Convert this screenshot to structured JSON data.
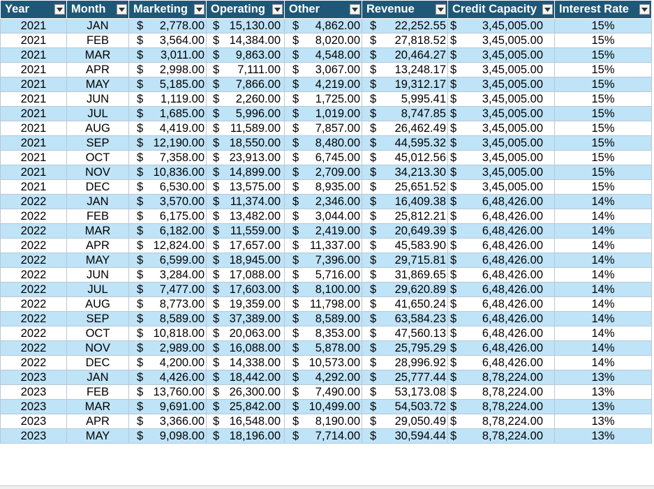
{
  "headers": [
    {
      "key": "year",
      "label": "Year"
    },
    {
      "key": "month",
      "label": "Month"
    },
    {
      "key": "marketing",
      "label": "Marketing"
    },
    {
      "key": "operating",
      "label": "Operating"
    },
    {
      "key": "other",
      "label": "Other"
    },
    {
      "key": "revenue",
      "label": "Revenue"
    },
    {
      "key": "credit",
      "label": "Credit Capacity"
    },
    {
      "key": "interest",
      "label": "Interest Rate"
    }
  ],
  "currency_symbol": "$",
  "rows": [
    {
      "year": "2021",
      "month": "JAN",
      "marketing": "2,778.00",
      "operating": "15,130.00",
      "other": "4,862.00",
      "revenue": "22,252.55",
      "credit": "3,45,005.00",
      "interest": "15%"
    },
    {
      "year": "2021",
      "month": "FEB",
      "marketing": "3,564.00",
      "operating": "14,384.00",
      "other": "8,020.00",
      "revenue": "27,818.52",
      "credit": "3,45,005.00",
      "interest": "15%"
    },
    {
      "year": "2021",
      "month": "MAR",
      "marketing": "3,011.00",
      "operating": "9,863.00",
      "other": "4,548.00",
      "revenue": "20,464.27",
      "credit": "3,45,005.00",
      "interest": "15%"
    },
    {
      "year": "2021",
      "month": "APR",
      "marketing": "2,998.00",
      "operating": "7,111.00",
      "other": "3,067.00",
      "revenue": "13,248.17",
      "credit": "3,45,005.00",
      "interest": "15%"
    },
    {
      "year": "2021",
      "month": "MAY",
      "marketing": "5,185.00",
      "operating": "7,866.00",
      "other": "4,219.00",
      "revenue": "19,312.17",
      "credit": "3,45,005.00",
      "interest": "15%"
    },
    {
      "year": "2021",
      "month": "JUN",
      "marketing": "1,119.00",
      "operating": "2,260.00",
      "other": "1,725.00",
      "revenue": "5,995.41",
      "credit": "3,45,005.00",
      "interest": "15%"
    },
    {
      "year": "2021",
      "month": "JUL",
      "marketing": "1,685.00",
      "operating": "5,996.00",
      "other": "1,019.00",
      "revenue": "8,747.85",
      "credit": "3,45,005.00",
      "interest": "15%"
    },
    {
      "year": "2021",
      "month": "AUG",
      "marketing": "4,419.00",
      "operating": "11,589.00",
      "other": "7,857.00",
      "revenue": "26,462.49",
      "credit": "3,45,005.00",
      "interest": "15%"
    },
    {
      "year": "2021",
      "month": "SEP",
      "marketing": "12,190.00",
      "operating": "18,550.00",
      "other": "8,480.00",
      "revenue": "44,595.32",
      "credit": "3,45,005.00",
      "interest": "15%"
    },
    {
      "year": "2021",
      "month": "OCT",
      "marketing": "7,358.00",
      "operating": "23,913.00",
      "other": "6,745.00",
      "revenue": "45,012.56",
      "credit": "3,45,005.00",
      "interest": "15%"
    },
    {
      "year": "2021",
      "month": "NOV",
      "marketing": "10,836.00",
      "operating": "14,899.00",
      "other": "2,709.00",
      "revenue": "34,213.30",
      "credit": "3,45,005.00",
      "interest": "15%"
    },
    {
      "year": "2021",
      "month": "DEC",
      "marketing": "6,530.00",
      "operating": "13,575.00",
      "other": "8,935.00",
      "revenue": "25,651.52",
      "credit": "3,45,005.00",
      "interest": "15%"
    },
    {
      "year": "2022",
      "month": "JAN",
      "marketing": "3,570.00",
      "operating": "11,374.00",
      "other": "2,346.00",
      "revenue": "16,409.38",
      "credit": "6,48,426.00",
      "interest": "14%"
    },
    {
      "year": "2022",
      "month": "FEB",
      "marketing": "6,175.00",
      "operating": "13,482.00",
      "other": "3,044.00",
      "revenue": "25,812.21",
      "credit": "6,48,426.00",
      "interest": "14%"
    },
    {
      "year": "2022",
      "month": "MAR",
      "marketing": "6,182.00",
      "operating": "11,559.00",
      "other": "2,419.00",
      "revenue": "20,649.39",
      "credit": "6,48,426.00",
      "interest": "14%"
    },
    {
      "year": "2022",
      "month": "APR",
      "marketing": "12,824.00",
      "operating": "17,657.00",
      "other": "11,337.00",
      "revenue": "45,583.90",
      "credit": "6,48,426.00",
      "interest": "14%"
    },
    {
      "year": "2022",
      "month": "MAY",
      "marketing": "6,599.00",
      "operating": "18,945.00",
      "other": "7,396.00",
      "revenue": "29,715.81",
      "credit": "6,48,426.00",
      "interest": "14%"
    },
    {
      "year": "2022",
      "month": "JUN",
      "marketing": "3,284.00",
      "operating": "17,088.00",
      "other": "5,716.00",
      "revenue": "31,869.65",
      "credit": "6,48,426.00",
      "interest": "14%"
    },
    {
      "year": "2022",
      "month": "JUL",
      "marketing": "7,477.00",
      "operating": "17,603.00",
      "other": "8,100.00",
      "revenue": "29,620.89",
      "credit": "6,48,426.00",
      "interest": "14%"
    },
    {
      "year": "2022",
      "month": "AUG",
      "marketing": "8,773.00",
      "operating": "19,359.00",
      "other": "11,798.00",
      "revenue": "41,650.24",
      "credit": "6,48,426.00",
      "interest": "14%"
    },
    {
      "year": "2022",
      "month": "SEP",
      "marketing": "8,589.00",
      "operating": "37,389.00",
      "other": "8,589.00",
      "revenue": "63,584.23",
      "credit": "6,48,426.00",
      "interest": "14%"
    },
    {
      "year": "2022",
      "month": "OCT",
      "marketing": "10,818.00",
      "operating": "20,063.00",
      "other": "8,353.00",
      "revenue": "47,560.13",
      "credit": "6,48,426.00",
      "interest": "14%"
    },
    {
      "year": "2022",
      "month": "NOV",
      "marketing": "2,989.00",
      "operating": "16,088.00",
      "other": "5,878.00",
      "revenue": "25,795.29",
      "credit": "6,48,426.00",
      "interest": "14%"
    },
    {
      "year": "2022",
      "month": "DEC",
      "marketing": "4,200.00",
      "operating": "14,338.00",
      "other": "10,573.00",
      "revenue": "28,996.92",
      "credit": "6,48,426.00",
      "interest": "14%"
    },
    {
      "year": "2023",
      "month": "JAN",
      "marketing": "4,426.00",
      "operating": "18,442.00",
      "other": "4,292.00",
      "revenue": "25,777.44",
      "credit": "8,78,224.00",
      "interest": "13%"
    },
    {
      "year": "2023",
      "month": "FEB",
      "marketing": "13,760.00",
      "operating": "26,300.00",
      "other": "7,490.00",
      "revenue": "53,173.08",
      "credit": "8,78,224.00",
      "interest": "13%"
    },
    {
      "year": "2023",
      "month": "MAR",
      "marketing": "9,691.00",
      "operating": "25,842.00",
      "other": "10,499.00",
      "revenue": "54,503.72",
      "credit": "8,78,224.00",
      "interest": "13%"
    },
    {
      "year": "2023",
      "month": "APR",
      "marketing": "3,366.00",
      "operating": "16,548.00",
      "other": "8,190.00",
      "revenue": "29,050.49",
      "credit": "8,78,224.00",
      "interest": "13%"
    },
    {
      "year": "2023",
      "month": "MAY",
      "marketing": "9,098.00",
      "operating": "18,196.00",
      "other": "7,714.00",
      "revenue": "30,594.44",
      "credit": "8,78,224.00",
      "interest": "13%"
    }
  ],
  "colors": {
    "header_bg": "#1f5877",
    "header_text": "#ffffff",
    "band_row": "#bfe3f7",
    "plain_row": "#ffffff"
  }
}
